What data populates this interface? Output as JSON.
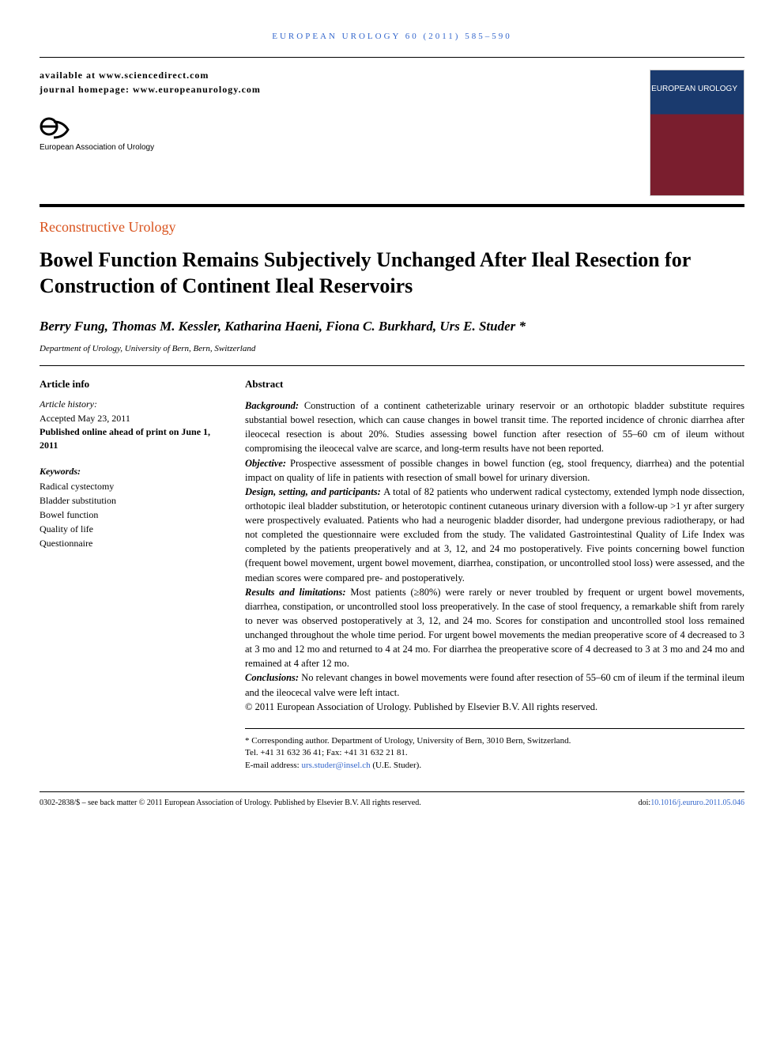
{
  "running_header": "EUROPEAN UROLOGY 60 (2011) 585–590",
  "availability_text": "available at www.sciencedirect.com",
  "homepage_text": "journal homepage: www.europeanurology.com",
  "eau_label": "European Association of Urology",
  "cover": {
    "journal_name": "EUROPEAN UROLOGY"
  },
  "section_label": "Reconstructive Urology",
  "title": "Bowel Function Remains Subjectively Unchanged After Ileal Resection for Construction of Continent Ileal Reservoirs",
  "authors": "Berry Fung, Thomas M. Kessler, Katharina Haeni, Fiona C. Burkhard, Urs E. Studer *",
  "affiliation": "Department of Urology, University of Bern, Bern, Switzerland",
  "left": {
    "info_heading": "Article info",
    "history_label": "Article history:",
    "accepted": "Accepted May 23, 2011",
    "published": "Published online ahead of print on June 1, 2011",
    "keywords_label": "Keywords:",
    "keywords": [
      "Radical cystectomy",
      "Bladder substitution",
      "Bowel function",
      "Quality of life",
      "Questionnaire"
    ]
  },
  "abstract": {
    "heading": "Abstract",
    "sections": [
      {
        "label": "Background:",
        "text": "Construction of a continent catheterizable urinary reservoir or an orthotopic bladder substitute requires substantial bowel resection, which can cause changes in bowel transit time. The reported incidence of chronic diarrhea after ileocecal resection is about 20%. Studies assessing bowel function after resection of 55–60 cm of ileum without compromising the ileocecal valve are scarce, and long-term results have not been reported."
      },
      {
        "label": "Objective:",
        "text": "Prospective assessment of possible changes in bowel function (eg, stool frequency, diarrhea) and the potential impact on quality of life in patients with resection of small bowel for urinary diversion."
      },
      {
        "label": "Design, setting, and participants:",
        "text": "A total of 82 patients who underwent radical cystectomy, extended lymph node dissection, orthotopic ileal bladder substitution, or heterotopic continent cutaneous urinary diversion with a follow-up >1 yr after surgery were prospectively evaluated. Patients who had a neurogenic bladder disorder, had undergone previous radiotherapy, or had not completed the questionnaire were excluded from the study. The validated Gastrointestinal Quality of Life Index was completed by the patients preoperatively and at 3, 12, and 24 mo postoperatively. Five points concerning bowel function (frequent bowel movement, urgent bowel movement, diarrhea, constipation, or uncontrolled stool loss) were assessed, and the median scores were compared pre- and postoperatively."
      },
      {
        "label": "Results and limitations:",
        "text": "Most patients (≥80%) were rarely or never troubled by frequent or urgent bowel movements, diarrhea, constipation, or uncontrolled stool loss preoperatively. In the case of stool frequency, a remarkable shift from rarely to never was observed postoperatively at 3, 12, and 24 mo. Scores for constipation and uncontrolled stool loss remained unchanged throughout the whole time period. For urgent bowel movements the median preoperative score of 4 decreased to 3 at 3 mo and 12 mo and returned to 4 at 24 mo. For diarrhea the preoperative score of 4 decreased to 3 at 3 mo and 24 mo and remained at 4 after 12 mo."
      },
      {
        "label": "Conclusions:",
        "text": "No relevant changes in bowel movements were found after resection of 55–60 cm of ileum if the terminal ileum and the ileocecal valve were left intact."
      }
    ],
    "copyright": "© 2011 European Association of Urology. Published by Elsevier B.V. All rights reserved."
  },
  "corresponding": {
    "line1": "* Corresponding author. Department of Urology, University of Bern, 3010 Bern, Switzerland.",
    "line2": "Tel. +41 31 632 36 41; Fax: +41 31 632 21 81.",
    "email_label": "E-mail address: ",
    "email": "urs.studer@insel.ch",
    "author_tag": " (U.E. Studer)."
  },
  "footer": {
    "left": "0302-2838/$ – see back matter © 2011 European Association of Urology. Published by Elsevier B.V. All rights reserved.",
    "doi_label": "doi:",
    "doi": "10.1016/j.eururo.2011.05.046"
  },
  "colors": {
    "link": "#3366cc",
    "section": "#d9531e"
  }
}
